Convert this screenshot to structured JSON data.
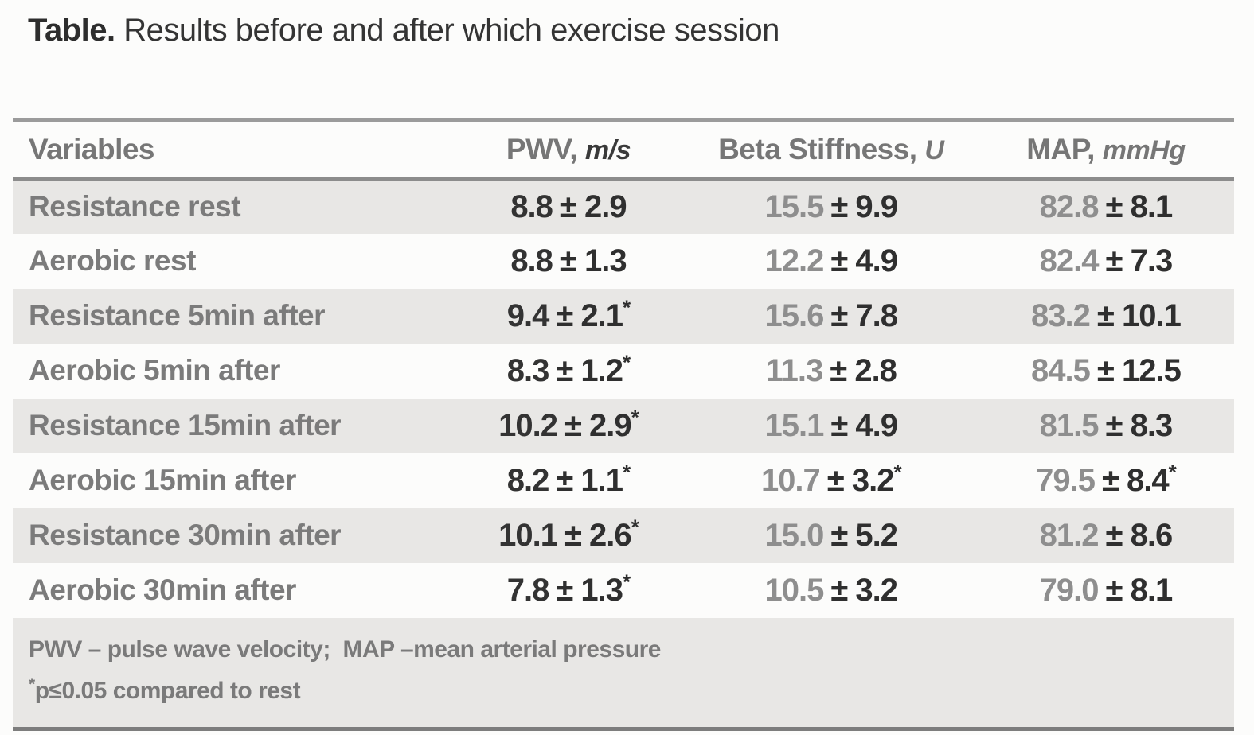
{
  "title": {
    "prefix": "Table.",
    "text": " Results before and after which exercise session"
  },
  "colors": {
    "stripe_background": "#e8e7e5",
    "rule_gray": "#9b9b9b",
    "label_gray": "#7b7b7b",
    "value_dark": "#333333",
    "value_mean_gray": "#8e8e8e"
  },
  "header": {
    "variables": "Variables",
    "pwv_name": "PWV, ",
    "pwv_unit": "m/s",
    "beta_name": "Beta Stiffness, ",
    "beta_unit": "U",
    "map_name": "MAP, ",
    "map_unit": "mmHg"
  },
  "rows": [
    {
      "label": "Resistance rest",
      "pwv": {
        "mean": "8.8",
        "sd": "± 2.9",
        "star": ""
      },
      "beta": {
        "mean": "15.5",
        "sd": "± 9.9",
        "star": ""
      },
      "map": {
        "mean": "82.8",
        "sd": "± 8.1",
        "star": ""
      }
    },
    {
      "label": "Aerobic rest",
      "pwv": {
        "mean": "8.8",
        "sd": "± 1.3",
        "star": ""
      },
      "beta": {
        "mean": "12.2",
        "sd": "± 4.9",
        "star": ""
      },
      "map": {
        "mean": "82.4",
        "sd": "± 7.3",
        "star": ""
      }
    },
    {
      "label": "Resistance 5min after",
      "pwv": {
        "mean": "9.4",
        "sd": "± 2.1",
        "star": "*"
      },
      "beta": {
        "mean": "15.6",
        "sd": "± 7.8",
        "star": ""
      },
      "map": {
        "mean": "83.2",
        "sd": "± 10.1",
        "star": ""
      }
    },
    {
      "label": "Aerobic 5min after",
      "pwv": {
        "mean": "8.3",
        "sd": "± 1.2",
        "star": "*"
      },
      "beta": {
        "mean": "11.3",
        "sd": "± 2.8",
        "star": ""
      },
      "map": {
        "mean": "84.5",
        "sd": "± 12.5",
        "star": ""
      }
    },
    {
      "label": "Resistance 15min after",
      "pwv": {
        "mean": "10.2",
        "sd": "± 2.9",
        "star": "*"
      },
      "beta": {
        "mean": "15.1",
        "sd": "± 4.9",
        "star": ""
      },
      "map": {
        "mean": "81.5",
        "sd": "± 8.3",
        "star": ""
      }
    },
    {
      "label": "Aerobic 15min after",
      "pwv": {
        "mean": "8.2",
        "sd": "± 1.1",
        "star": "*"
      },
      "beta": {
        "mean": "10.7",
        "sd": "± 3.2",
        "star": "*"
      },
      "map": {
        "mean": "79.5",
        "sd": "± 8.4",
        "star": "*"
      }
    },
    {
      "label": "Resistance 30min after",
      "pwv": {
        "mean": "10.1",
        "sd": "± 2.6",
        "star": "*"
      },
      "beta": {
        "mean": "15.0",
        "sd": "± 5.2",
        "star": ""
      },
      "map": {
        "mean": "81.2",
        "sd": "± 8.6",
        "star": ""
      }
    },
    {
      "label": "Aerobic 30min after",
      "pwv": {
        "mean": "7.8",
        "sd": "± 1.3",
        "star": "*"
      },
      "beta": {
        "mean": "10.5",
        "sd": "± 3.2",
        "star": ""
      },
      "map": {
        "mean": "79.0",
        "sd": "± 8.1",
        "star": ""
      }
    }
  ],
  "footnotes": {
    "line1": "PWV – pulse wave velocity;  MAP –mean arterial pressure",
    "line2_star": "*",
    "line2": "p≤0.05 compared to rest"
  }
}
